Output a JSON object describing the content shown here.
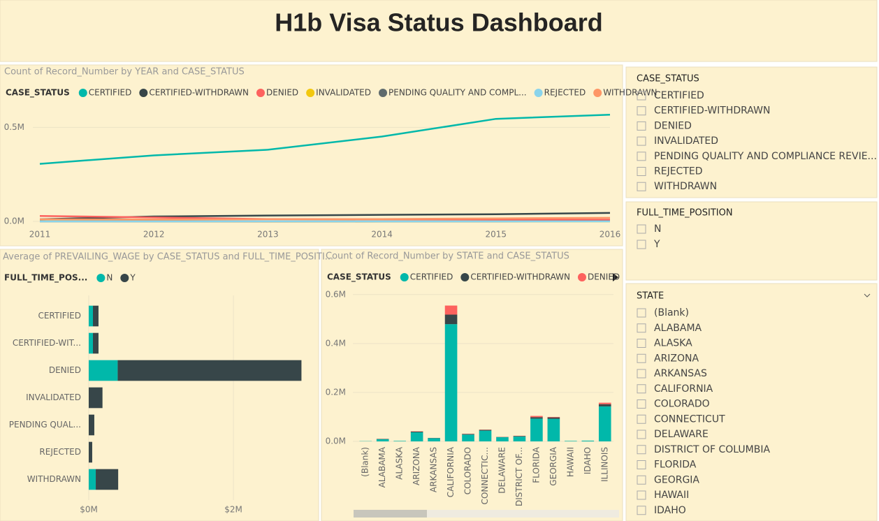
{
  "header": {
    "title": "H1b Visa Status Dashboard"
  },
  "chart_data": [
    {
      "type": "line",
      "title": "Count of Record_Number by YEAR and CASE_STATUS",
      "legend_title": "CASE_STATUS",
      "x": [
        2011,
        2012,
        2013,
        2014,
        2015,
        2016
      ],
      "xlim": [
        2011,
        2016
      ],
      "xticks": [
        2011,
        2012,
        2013,
        2014,
        2015,
        2016
      ],
      "ylim": [
        0,
        620000
      ],
      "yticks": [
        {
          "value": 0,
          "label": "0.0M"
        },
        {
          "value": 500000,
          "label": "0.5M"
        }
      ],
      "grid": true,
      "series": [
        {
          "name": "CERTIFIED",
          "color": "#01b8aa",
          "values": [
            306000,
            351000,
            381000,
            451000,
            545000,
            567000
          ]
        },
        {
          "name": "CERTIFIED-WITHDRAWN",
          "color": "#374649",
          "values": [
            11000,
            26000,
            31000,
            35000,
            38000,
            45000
          ]
        },
        {
          "name": "DENIED",
          "color": "#fd625e",
          "values": [
            29000,
            21000,
            12000,
            11000,
            10000,
            9000
          ]
        },
        {
          "name": "INVALIDATED",
          "color": "#f2c80f",
          "values": [
            1000,
            500,
            300,
            200,
            100,
            100
          ]
        },
        {
          "name": "PENDING QUALITY AND COMPL...",
          "color": "#5f6b6d",
          "values": [
            0,
            0,
            0,
            0,
            0,
            1000
          ]
        },
        {
          "name": "REJECTED",
          "color": "#8ad4eb",
          "values": [
            0,
            0,
            1000,
            0,
            0,
            0
          ]
        },
        {
          "name": "WITHDRAWN",
          "color": "#fe9666",
          "values": [
            11000,
            10000,
            11000,
            12000,
            16000,
            19000
          ]
        }
      ]
    },
    {
      "type": "bar",
      "orientation": "horizontal",
      "stacked": true,
      "title": "Average of PREVAILING_WAGE by CASE_STATUS and FULL_TIME_POSITI...",
      "legend_title": "FULL_TIME_POS...",
      "categories": [
        "CERTIFIED",
        "CERTIFIED-WIT...",
        "DENIED",
        "INVALIDATED",
        "PENDING QUAL...",
        "REJECTED",
        "WITHDRAWN"
      ],
      "xlim": [
        0,
        3100000
      ],
      "xticks": [
        {
          "value": 0,
          "label": "$0M"
        },
        {
          "value": 2000000,
          "label": "$2M"
        }
      ],
      "grid": true,
      "series": [
        {
          "name": "N",
          "color": "#01b8aa",
          "values": [
            58000,
            58000,
            400000,
            null,
            null,
            null,
            97000
          ]
        },
        {
          "name": "Y",
          "color": "#374649",
          "values": [
            77000,
            77000,
            2540000,
            190000,
            77000,
            48000,
            310000
          ]
        }
      ]
    },
    {
      "type": "bar",
      "orientation": "vertical",
      "stacked": true,
      "title": "Count of Record_Number by STATE and CASE_STATUS",
      "legend_title": "CASE_STATUS",
      "categories": [
        "(Blank)",
        "ALABAMA",
        "ALASKA",
        "ARIZONA",
        "ARKANSAS",
        "CALIFORNIA",
        "COLORADO",
        "CONNECTIC...",
        "DELAWARE",
        "DISTRICT OF...",
        "FLORIDA",
        "GEORGIA",
        "HAWAII",
        "IDAHO",
        "ILLINOIS"
      ],
      "ylim": [
        0,
        605000
      ],
      "yticks": [
        {
          "value": 0,
          "label": "0.0M"
        },
        {
          "value": 200000,
          "label": "0.2M"
        },
        {
          "value": 400000,
          "label": "0.4M"
        },
        {
          "value": 600000,
          "label": "0.6M"
        }
      ],
      "series": [
        {
          "name": "CERTIFIED",
          "color": "#01b8aa",
          "values": [
            1000,
            9000,
            2000,
            37000,
            13000,
            479000,
            28000,
            44000,
            17000,
            20000,
            93000,
            92000,
            2000,
            3000,
            143000
          ]
        },
        {
          "name": "CERTIFIED-WITHDRAWN",
          "color": "#374649",
          "values": [
            0,
            1000,
            0,
            3000,
            1000,
            39000,
            2000,
            3000,
            1000,
            2000,
            6000,
            6000,
            0,
            0,
            9000
          ]
        },
        {
          "name": "DENIED",
          "color": "#fd625e",
          "values": [
            0,
            500,
            0,
            1000,
            300,
            37000,
            1000,
            1000,
            500,
            1000,
            5000,
            2000,
            0,
            0,
            6000
          ]
        }
      ]
    }
  ],
  "slicers": [
    {
      "title": "CASE_STATUS",
      "items": [
        "CERTIFIED",
        "CERTIFIED-WITHDRAWN",
        "DENIED",
        "INVALIDATED",
        "PENDING QUALITY AND COMPLIANCE REVIE...",
        "REJECTED",
        "WITHDRAWN"
      ]
    },
    {
      "title": "FULL_TIME_POSITION",
      "items": [
        "N",
        "Y"
      ]
    },
    {
      "title": "STATE",
      "items": [
        "(Blank)",
        "ALABAMA",
        "ALASKA",
        "ARIZONA",
        "ARKANSAS",
        "CALIFORNIA",
        "COLORADO",
        "CONNECTICUT",
        "DELAWARE",
        "DISTRICT OF COLUMBIA",
        "FLORIDA",
        "GEORGIA",
        "HAWAII",
        "IDAHO"
      ]
    }
  ]
}
